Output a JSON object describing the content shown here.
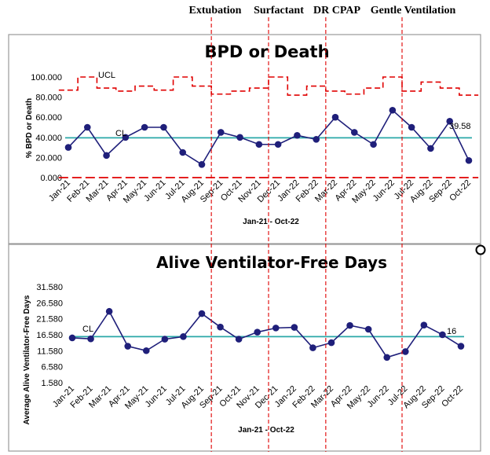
{
  "interventions": [
    {
      "label": "Extubation",
      "after_month": "Aug-21"
    },
    {
      "label": "Surfactant",
      "after_month": "Nov-21"
    },
    {
      "label": "DR CPAP",
      "after_month": "Feb-22"
    },
    {
      "label": "Gentle Ventilation",
      "after_month": "Jun-22"
    }
  ],
  "colors": {
    "series": "#1f1f7a",
    "center_line": "#2aa8a8",
    "control_limits": "#e00000",
    "intervention": "#e00000"
  },
  "chart_data": [
    {
      "type": "line",
      "title": "BPD or Death",
      "xlabel": "Jan-21 - Oct-22",
      "ylabel": "% BPD or Death",
      "ylim": [
        0,
        100
      ],
      "yticks": [
        "0.000",
        "20.000",
        "40.000",
        "60.000",
        "80.000",
        "100.000"
      ],
      "categories": [
        "Jan-21",
        "Feb-21",
        "Mar-21",
        "Apr-21",
        "May-21",
        "Jun-21",
        "Jul-21",
        "Aug-21",
        "Sep-21",
        "Oct-21",
        "Nov-21",
        "Dec-21",
        "Jan-22",
        "Feb-22",
        "Mar-22",
        "Apr-22",
        "May-22",
        "Jun-22",
        "Jul-22",
        "Aug-22",
        "Sep-22",
        "Oct-22"
      ],
      "values": [
        30,
        50,
        22,
        40,
        50,
        50,
        25,
        13,
        45,
        40,
        33,
        33,
        42,
        38,
        60,
        45,
        33,
        67,
        50,
        29,
        56,
        17
      ],
      "center_line": {
        "label": "CL",
        "value": 39.58,
        "value_label": "39.58"
      },
      "ucl": {
        "label": "UCL",
        "values": [
          87,
          100,
          89,
          86,
          91,
          87,
          100,
          91,
          83,
          86,
          89,
          100,
          82,
          91,
          86,
          83,
          89,
          100,
          86,
          95,
          89,
          82
        ]
      },
      "lcl": {
        "value": 0
      }
    },
    {
      "type": "line",
      "title": "Alive Ventilator-Free Days",
      "xlabel": "Jan-21 - Oct-22",
      "ylabel": "Average Alive Ventilator-Free Days",
      "ylim": [
        1.58,
        31.58
      ],
      "yticks": [
        "1.580",
        "6.580",
        "11.580",
        "16.580",
        "21.580",
        "26.580",
        "31.580"
      ],
      "categories": [
        "Jan-21",
        "Feb-21",
        "Mar-21",
        "Apr-21",
        "May-21",
        "Jun-21",
        "Jul-21",
        "Aug-21",
        "Sep-21",
        "Oct-21",
        "Nov-21",
        "Dec-21",
        "Jan-22",
        "Feb-22",
        "Mar-22",
        "Apr-22",
        "May-22",
        "Jun-22",
        "Jul-22",
        "Aug-22",
        "Sep-22",
        "Oct-22"
      ],
      "values": [
        15.6,
        15.3,
        23.9,
        13.0,
        11.6,
        15.2,
        16.0,
        23.2,
        19.0,
        15.2,
        17.4,
        18.7,
        18.9,
        12.5,
        14.1,
        19.5,
        18.3,
        9.5,
        11.3,
        19.6,
        16.6,
        13.0
      ],
      "center_line": {
        "label": "CL",
        "value": 16,
        "value_label": "16"
      }
    }
  ]
}
